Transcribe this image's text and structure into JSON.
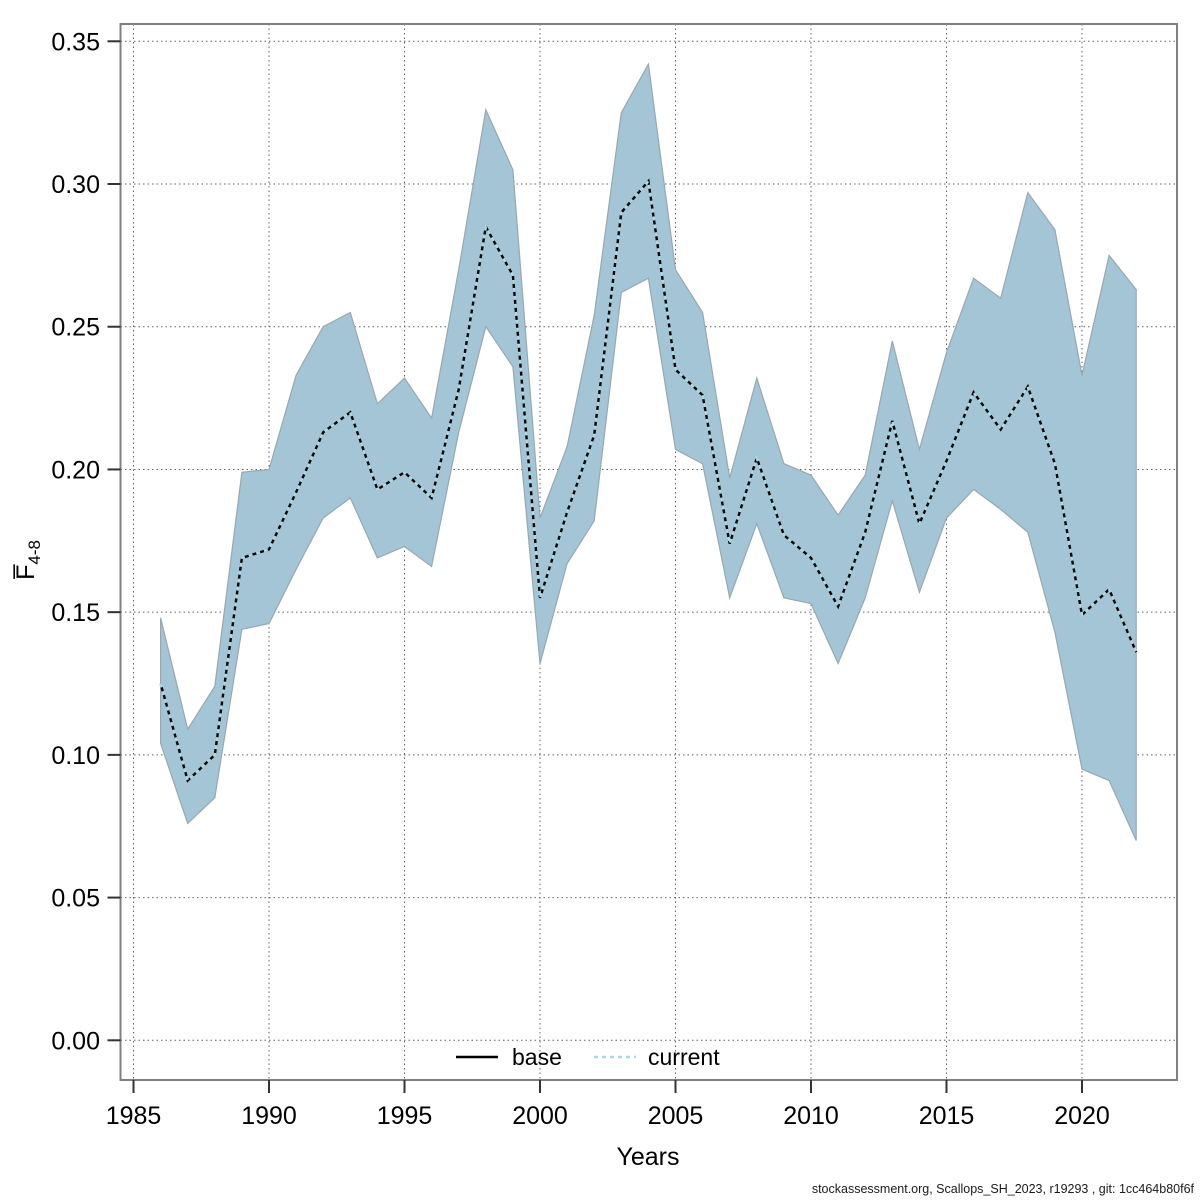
{
  "footer": {
    "text": "stockassessment.org, Scallops_SH_2023, r19293 , git: 1cc464b80f6f"
  },
  "chart_data": {
    "type": "line",
    "title": "",
    "xlabel": "Years",
    "ylabel_main": "F̅",
    "ylabel_sub": "4-8",
    "grid": true,
    "legend_position": "bottom-center-inside",
    "x_ticks": [
      1985,
      1990,
      1995,
      2000,
      2005,
      2010,
      2015,
      2020
    ],
    "x_tick_labels": [
      "1985",
      "1990",
      "1995",
      "2000",
      "2005",
      "2010",
      "2015",
      "2020"
    ],
    "y_ticks": [
      0.0,
      0.05,
      0.1,
      0.15,
      0.2,
      0.25,
      0.3,
      0.35
    ],
    "y_tick_labels": [
      "0.00",
      "0.05",
      "0.10",
      "0.15",
      "0.20",
      "0.25",
      "0.30",
      "0.35"
    ],
    "xlim": [
      1984.5,
      2023.2
    ],
    "ylim": [
      -0.014,
      0.356
    ],
    "x": [
      1986,
      1987,
      1988,
      1989,
      1990,
      1991,
      1992,
      1993,
      1994,
      1995,
      1996,
      1997,
      1998,
      1999,
      2000,
      2001,
      2002,
      2003,
      2004,
      2005,
      2006,
      2007,
      2008,
      2009,
      2010,
      2011,
      2012,
      2013,
      2014,
      2015,
      2016,
      2017,
      2018,
      2019,
      2020,
      2021,
      2022
    ],
    "series": [
      {
        "name": "base",
        "style": "solid",
        "color": "#000000",
        "values": [
          0.125,
          0.091,
          0.1,
          0.169,
          0.172,
          0.192,
          0.213,
          0.22,
          0.193,
          0.199,
          0.19,
          0.228,
          0.285,
          0.268,
          0.155,
          0.185,
          0.212,
          0.29,
          0.301,
          0.235,
          0.226,
          0.174,
          0.204,
          0.177,
          0.169,
          0.152,
          0.178,
          0.217,
          0.181,
          0.203,
          0.227,
          0.214,
          0.229,
          0.202,
          0.149,
          0.158,
          0.136
        ]
      },
      {
        "name": "current",
        "style": "dashed",
        "color": "#ADD8E6",
        "values": [
          0.125,
          0.091,
          0.1,
          0.169,
          0.172,
          0.192,
          0.213,
          0.22,
          0.193,
          0.199,
          0.19,
          0.228,
          0.285,
          0.268,
          0.155,
          0.185,
          0.212,
          0.29,
          0.301,
          0.235,
          0.226,
          0.174,
          0.204,
          0.177,
          0.169,
          0.152,
          0.178,
          0.217,
          0.181,
          0.203,
          0.227,
          0.214,
          0.229,
          0.202,
          0.149,
          0.158,
          0.136
        ]
      }
    ],
    "band": {
      "name": "current-confidence-band",
      "fill": "#A4C5D5",
      "edge": "#97A8B0",
      "lower": [
        0.104,
        0.076,
        0.085,
        0.144,
        0.146,
        0.165,
        0.183,
        0.19,
        0.169,
        0.173,
        0.166,
        0.213,
        0.25,
        0.236,
        0.132,
        0.167,
        0.182,
        0.262,
        0.267,
        0.207,
        0.202,
        0.155,
        0.181,
        0.155,
        0.153,
        0.132,
        0.155,
        0.189,
        0.157,
        0.183,
        0.193,
        0.186,
        0.178,
        0.143,
        0.095,
        0.091,
        0.07
      ],
      "upper": [
        0.148,
        0.109,
        0.124,
        0.199,
        0.2,
        0.233,
        0.25,
        0.255,
        0.223,
        0.232,
        0.218,
        0.27,
        0.326,
        0.305,
        0.183,
        0.208,
        0.254,
        0.325,
        0.342,
        0.27,
        0.255,
        0.197,
        0.232,
        0.202,
        0.198,
        0.184,
        0.198,
        0.245,
        0.207,
        0.241,
        0.267,
        0.26,
        0.297,
        0.284,
        0.233,
        0.275,
        0.263
      ]
    },
    "legend": [
      {
        "label": "base",
        "style": "solid",
        "color": "#000000"
      },
      {
        "label": "current",
        "style": "dashed",
        "color": "#ADD8E6"
      }
    ],
    "colors": {
      "grid": "#606060",
      "axis_box": "#808080",
      "tick": "#333333"
    }
  }
}
